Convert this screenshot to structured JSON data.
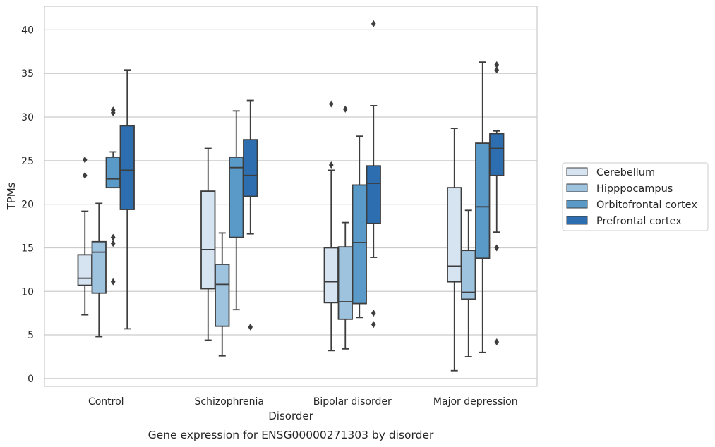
{
  "chart_data": {
    "type": "box",
    "title": "",
    "caption": "Gene expression for ENSG00000271303 by disorder",
    "xlabel": "Disorder",
    "ylabel": "TPMs",
    "ylim": [
      -0.9,
      42.7
    ],
    "yticks": [
      0,
      5,
      10,
      15,
      20,
      25,
      30,
      35,
      40
    ],
    "grid": "horizontal",
    "legend_position": "right",
    "categories": [
      "Control",
      "Schizophrenia",
      "Bipolar disorder",
      "Major depression"
    ],
    "series": [
      {
        "name": "Cerebellum",
        "color": "#d6e4f2",
        "boxes": [
          {
            "whislo": 7.3,
            "q1": 10.7,
            "med": 11.5,
            "q3": 14.2,
            "whishi": 19.2,
            "fliers": [
              23.3,
              25.1
            ]
          },
          {
            "whislo": 4.4,
            "q1": 10.3,
            "med": 14.8,
            "q3": 21.5,
            "whishi": 26.4,
            "fliers": []
          },
          {
            "whislo": 3.2,
            "q1": 8.7,
            "med": 11.1,
            "q3": 15.0,
            "whishi": 23.9,
            "fliers": [
              24.5,
              31.5
            ]
          },
          {
            "whislo": 0.9,
            "q1": 11.1,
            "med": 12.9,
            "q3": 21.9,
            "whishi": 28.7,
            "fliers": []
          }
        ]
      },
      {
        "name": "Hipppocampus",
        "color": "#9ec3de",
        "boxes": [
          {
            "whislo": 4.8,
            "q1": 9.8,
            "med": 14.5,
            "q3": 15.7,
            "whishi": 20.1,
            "fliers": []
          },
          {
            "whislo": 2.6,
            "q1": 6.0,
            "med": 10.8,
            "q3": 13.1,
            "whishi": 16.7,
            "fliers": []
          },
          {
            "whislo": 3.4,
            "q1": 6.8,
            "med": 8.8,
            "q3": 15.1,
            "whishi": 17.9,
            "fliers": [
              30.9
            ]
          },
          {
            "whislo": 2.5,
            "q1": 9.1,
            "med": 9.9,
            "q3": 14.7,
            "whishi": 19.3,
            "fliers": []
          }
        ]
      },
      {
        "name": "Orbitofrontal cortex",
        "color": "#5a9ac8",
        "boxes": [
          {
            "whislo": 21.9,
            "q1": 21.9,
            "med": 22.9,
            "q3": 25.4,
            "whishi": 26.0,
            "fliers": [
              11.1,
              15.5,
              16.2,
              30.5,
              30.8
            ]
          },
          {
            "whislo": 7.9,
            "q1": 16.2,
            "med": 24.2,
            "q3": 25.4,
            "whishi": 30.7,
            "fliers": []
          },
          {
            "whislo": 7.0,
            "q1": 8.6,
            "med": 15.6,
            "q3": 22.2,
            "whishi": 27.8,
            "fliers": []
          },
          {
            "whislo": 3.0,
            "q1": 13.8,
            "med": 19.7,
            "q3": 27.0,
            "whishi": 36.3,
            "fliers": []
          }
        ]
      },
      {
        "name": "Prefrontal cortex",
        "color": "#2c6eaf",
        "boxes": [
          {
            "whislo": 5.7,
            "q1": 19.4,
            "med": 23.9,
            "q3": 29.0,
            "whishi": 35.4,
            "fliers": []
          },
          {
            "whislo": 16.6,
            "q1": 20.9,
            "med": 23.3,
            "q3": 27.4,
            "whishi": 31.9,
            "fliers": [
              5.9
            ]
          },
          {
            "whislo": 13.9,
            "q1": 17.8,
            "med": 22.4,
            "q3": 24.4,
            "whishi": 31.3,
            "fliers": [
              6.2,
              7.5,
              40.7
            ]
          },
          {
            "whislo": 16.8,
            "q1": 23.3,
            "med": 26.4,
            "q3": 28.1,
            "whishi": 28.4,
            "fliers": [
              4.2,
              15.0,
              35.4,
              36.0
            ]
          }
        ]
      }
    ]
  }
}
